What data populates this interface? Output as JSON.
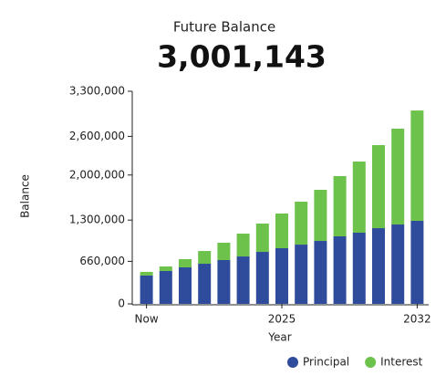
{
  "chart_data": {
    "type": "stacked_bar",
    "title": "Future Balance",
    "subtitle": "3,001,143",
    "x_label": "Year",
    "y_label": "Balance",
    "categories": [
      "Now",
      null,
      null,
      null,
      null,
      null,
      null,
      "2025",
      null,
      null,
      null,
      null,
      null,
      null,
      "2032"
    ],
    "series": [
      {
        "name": "Principal",
        "color": "#2f4b9c",
        "values": [
          440000,
          510000,
          567000,
          623000,
          680000,
          736000,
          807000,
          864000,
          920000,
          977000,
          1048000,
          1105000,
          1175000,
          1232000,
          1289000
        ]
      },
      {
        "name": "Interest",
        "color": "#6cc24a",
        "values": [
          56000,
          71000,
          127000,
          198000,
          269000,
          354000,
          439000,
          538000,
          666000,
          793000,
          935000,
          1104000,
          1289000,
          1487000,
          1712143
        ]
      }
    ],
    "ylim": [
      0,
      3300000
    ],
    "yticks": [
      0,
      {
        "value": 660000,
        "label": "660,000"
      },
      {
        "value": 1300000,
        "label": "1,300,000"
      },
      {
        "value": 2000000,
        "label": "2,000,000"
      },
      {
        "value": 2600000,
        "label": "2,600,000"
      },
      {
        "value": 3300000,
        "label": "3,300,000"
      }
    ],
    "legend": "bottom-right"
  }
}
